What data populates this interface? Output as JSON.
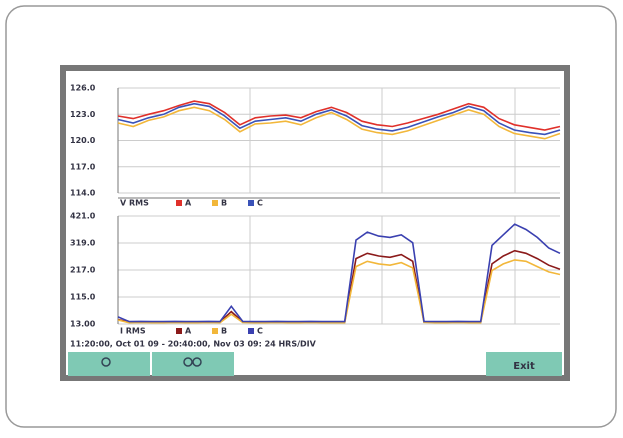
{
  "chart_data": [
    {
      "type": "line",
      "legend_title": "V RMS",
      "ylim": [
        114,
        126
      ],
      "yticks": [
        {
          "value": 114,
          "label": "114.0"
        },
        {
          "value": 117,
          "label": "117.0"
        },
        {
          "value": 120,
          "label": "120.0"
        },
        {
          "value": 123,
          "label": "123.0"
        },
        {
          "value": 126,
          "label": "126.0"
        }
      ],
      "grid": true,
      "series": [
        {
          "name": "A",
          "color": "#e0302a",
          "values": [
            122.8,
            122.5,
            123,
            123.4,
            124,
            124.5,
            124.2,
            123.2,
            121.8,
            122.6,
            122.8,
            122.9,
            122.6,
            123.3,
            123.8,
            123.2,
            122.2,
            121.8,
            121.6,
            122,
            122.5,
            123,
            123.6,
            124.2,
            123.8,
            122.5,
            121.8,
            121.5,
            121.2,
            121.6
          ]
        },
        {
          "name": "B",
          "color": "#f2b73a",
          "values": [
            122,
            121.6,
            122.3,
            122.7,
            123.4,
            123.8,
            123.4,
            122.4,
            121,
            121.9,
            122,
            122.2,
            121.8,
            122.6,
            123.2,
            122.4,
            121.3,
            120.9,
            120.7,
            121.1,
            121.7,
            122.3,
            122.9,
            123.5,
            123,
            121.6,
            120.8,
            120.5,
            120.2,
            120.8
          ]
        },
        {
          "name": "C",
          "color": "#3a52b8",
          "values": [
            122.4,
            122,
            122.6,
            123,
            123.8,
            124.2,
            123.9,
            122.8,
            121.4,
            122.2,
            122.4,
            122.6,
            122.2,
            123,
            123.5,
            122.8,
            121.7,
            121.3,
            121.1,
            121.5,
            122.1,
            122.7,
            123.2,
            123.9,
            123.4,
            122,
            121.2,
            120.9,
            120.7,
            121.2
          ]
        }
      ]
    },
    {
      "type": "line",
      "legend_title": "I RMS",
      "ylim": [
        13,
        421
      ],
      "yticks": [
        {
          "value": 13,
          "label": "13.00"
        },
        {
          "value": 115,
          "label": "115.0"
        },
        {
          "value": 217,
          "label": "217.0"
        },
        {
          "value": 319,
          "label": "319.0"
        },
        {
          "value": 421,
          "label": "421.0"
        }
      ],
      "grid": true,
      "series": [
        {
          "name": "A",
          "color": "#8b1a1a",
          "values": [
            30,
            20,
            21,
            20,
            20,
            21,
            20,
            20,
            21,
            20,
            60,
            21,
            20,
            20,
            21,
            20,
            20,
            21,
            20,
            20,
            20,
            260,
            280,
            270,
            265,
            275,
            250,
            21,
            20,
            20,
            21,
            20,
            20,
            240,
            270,
            290,
            280,
            260,
            235,
            220
          ]
        },
        {
          "name": "B",
          "color": "#f2b73a",
          "values": [
            28,
            18,
            19,
            18,
            18,
            19,
            18,
            18,
            19,
            18,
            50,
            19,
            18,
            18,
            19,
            18,
            18,
            19,
            18,
            18,
            18,
            230,
            250,
            240,
            235,
            245,
            225,
            19,
            18,
            18,
            19,
            18,
            18,
            215,
            240,
            255,
            250,
            230,
            210,
            200
          ]
        },
        {
          "name": "C",
          "color": "#3a40b0",
          "values": [
            40,
            22,
            23,
            22,
            22,
            23,
            22,
            22,
            23,
            22,
            80,
            23,
            22,
            22,
            23,
            22,
            22,
            23,
            22,
            22,
            22,
            330,
            360,
            345,
            340,
            350,
            320,
            23,
            22,
            22,
            23,
            22,
            22,
            310,
            350,
            390,
            370,
            340,
            300,
            280
          ]
        }
      ]
    }
  ],
  "time_range": "11:20:00, Oct 01 09 - 20:40:00, Nov 03 09: 24 HRS/DIV",
  "exit_button": "Exit"
}
